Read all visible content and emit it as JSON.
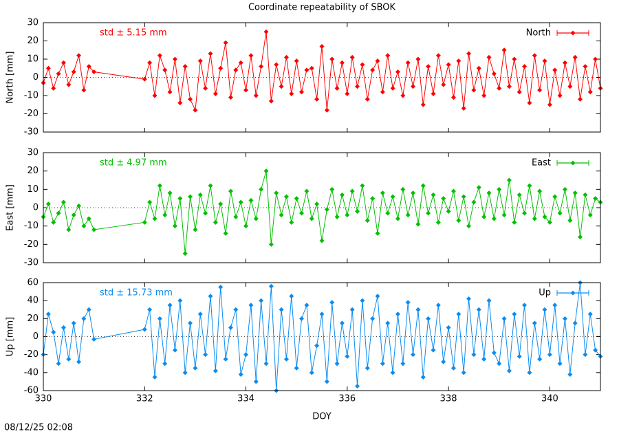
{
  "title": "Coordinate repeatability of SBOK",
  "footer": "08/12/25 02:08",
  "chart_data": [
    {
      "type": "line",
      "y_label": "North [mm]",
      "annotation": "std ± 5.15 mm",
      "legend": "top-right",
      "reference_line": 0,
      "xlim": [
        330,
        341
      ],
      "xticks": [
        330,
        332,
        334,
        336,
        338,
        340
      ],
      "ylim": [
        -30,
        30
      ],
      "yticks": [
        -30,
        -20,
        -10,
        0,
        10,
        20,
        30
      ],
      "x": [
        330,
        330.1,
        330.2,
        330.3,
        330.4,
        330.5,
        330.6,
        330.7,
        330.8,
        330.9,
        331,
        332,
        332.1,
        332.2,
        332.3,
        332.4,
        332.5,
        332.6,
        332.7,
        332.8,
        332.9,
        333,
        333.1,
        333.2,
        333.3,
        333.4,
        333.5,
        333.6,
        333.7,
        333.8,
        333.9,
        334,
        334.1,
        334.2,
        334.3,
        334.4,
        334.5,
        334.6,
        334.7,
        334.8,
        334.9,
        335,
        335.1,
        335.2,
        335.3,
        335.4,
        335.5,
        335.6,
        335.7,
        335.8,
        335.9,
        336,
        336.1,
        336.2,
        336.3,
        336.4,
        336.5,
        336.6,
        336.7,
        336.8,
        336.9,
        337,
        337.1,
        337.2,
        337.3,
        337.4,
        337.5,
        337.6,
        337.7,
        337.8,
        337.9,
        338,
        338.1,
        338.2,
        338.3,
        338.4,
        338.5,
        338.6,
        338.7,
        338.8,
        338.9,
        339,
        339.1,
        339.2,
        339.3,
        339.4,
        339.5,
        339.6,
        339.7,
        339.8,
        339.9,
        340,
        340.1,
        340.2,
        340.3,
        340.4,
        340.5,
        340.6,
        340.7,
        340.8,
        340.9,
        341
      ],
      "series": [
        {
          "name": "North",
          "color": "#ff0000",
          "values": [
            -3,
            5,
            -6,
            2,
            8,
            -4,
            3,
            12,
            -7,
            6,
            3,
            -1,
            8,
            -10,
            12,
            4,
            -8,
            10,
            -14,
            6,
            -12,
            -18,
            9,
            -6,
            13,
            -9,
            5,
            19,
            -11,
            4,
            8,
            -7,
            12,
            -10,
            6,
            25,
            -13,
            7,
            -5,
            11,
            -9,
            9,
            -8,
            4,
            5,
            -12,
            17,
            -18,
            10,
            -6,
            8,
            -9,
            11,
            -5,
            7,
            -12,
            4,
            9,
            -8,
            12,
            -6,
            3,
            -10,
            8,
            -5,
            10,
            -15,
            6,
            -9,
            12,
            -4,
            7,
            -11,
            9,
            -17,
            13,
            -7,
            5,
            -10,
            11,
            2,
            -6,
            15,
            -5,
            10,
            -8,
            6,
            -14,
            12,
            -7,
            9,
            -15,
            4,
            -10,
            8,
            -5,
            11,
            -12,
            6,
            -8,
            10,
            -6
          ]
        }
      ]
    },
    {
      "type": "line",
      "y_label": "East [mm]",
      "annotation": "std ± 4.97 mm",
      "legend": "top-right",
      "reference_line": 0,
      "xlim": [
        330,
        341
      ],
      "xticks": [
        330,
        332,
        334,
        336,
        338,
        340
      ],
      "ylim": [
        -30,
        30
      ],
      "yticks": [
        -30,
        -20,
        -10,
        0,
        10,
        20,
        30
      ],
      "x": [
        330,
        330.1,
        330.2,
        330.3,
        330.4,
        330.5,
        330.6,
        330.7,
        330.8,
        330.9,
        331,
        332,
        332.1,
        332.2,
        332.3,
        332.4,
        332.5,
        332.6,
        332.7,
        332.8,
        332.9,
        333,
        333.1,
        333.2,
        333.3,
        333.4,
        333.5,
        333.6,
        333.7,
        333.8,
        333.9,
        334,
        334.1,
        334.2,
        334.3,
        334.4,
        334.5,
        334.6,
        334.7,
        334.8,
        334.9,
        335,
        335.1,
        335.2,
        335.3,
        335.4,
        335.5,
        335.6,
        335.7,
        335.8,
        335.9,
        336,
        336.1,
        336.2,
        336.3,
        336.4,
        336.5,
        336.6,
        336.7,
        336.8,
        336.9,
        337,
        337.1,
        337.2,
        337.3,
        337.4,
        337.5,
        337.6,
        337.7,
        337.8,
        337.9,
        338,
        338.1,
        338.2,
        338.3,
        338.4,
        338.5,
        338.6,
        338.7,
        338.8,
        338.9,
        339,
        339.1,
        339.2,
        339.3,
        339.4,
        339.5,
        339.6,
        339.7,
        339.8,
        339.9,
        340,
        340.1,
        340.2,
        340.3,
        340.4,
        340.5,
        340.6,
        340.7,
        340.8,
        340.9,
        341
      ],
      "series": [
        {
          "name": "East",
          "color": "#00c000",
          "values": [
            -5,
            2,
            -8,
            -3,
            3,
            -12,
            -4,
            1,
            -10,
            -6,
            -12,
            -8,
            3,
            -6,
            12,
            -4,
            8,
            -10,
            5,
            -25,
            6,
            -12,
            7,
            -3,
            12,
            -8,
            2,
            -14,
            9,
            -5,
            3,
            -10,
            4,
            -6,
            10,
            20,
            -20,
            8,
            -4,
            6,
            -8,
            5,
            -3,
            9,
            -6,
            2,
            -18,
            -1,
            10,
            -5,
            7,
            -4,
            9,
            -2,
            12,
            -7,
            5,
            -14,
            8,
            -3,
            6,
            -6,
            10,
            -4,
            8,
            -9,
            12,
            -3,
            7,
            -8,
            5,
            -2,
            9,
            -7,
            6,
            -10,
            3,
            11,
            -5,
            8,
            -6,
            10,
            -4,
            15,
            -8,
            7,
            -3,
            12,
            -6,
            9,
            -5,
            -8,
            6,
            -3,
            10,
            -7,
            8,
            -16,
            7,
            -4,
            5,
            3
          ]
        }
      ]
    },
    {
      "type": "line",
      "y_label": "Up [mm]",
      "x_label": "DOY",
      "annotation": "std ± 15.73 mm",
      "legend": "top-right",
      "reference_line": 0,
      "xlim": [
        330,
        341
      ],
      "xticks": [
        330,
        332,
        334,
        336,
        338,
        340
      ],
      "ylim": [
        -60,
        60
      ],
      "yticks": [
        -60,
        -40,
        -20,
        0,
        20,
        40,
        60
      ],
      "x": [
        330,
        330.1,
        330.2,
        330.3,
        330.4,
        330.5,
        330.6,
        330.7,
        330.8,
        330.9,
        331,
        332,
        332.1,
        332.2,
        332.3,
        332.4,
        332.5,
        332.6,
        332.7,
        332.8,
        332.9,
        333,
        333.1,
        333.2,
        333.3,
        333.4,
        333.5,
        333.6,
        333.7,
        333.8,
        333.9,
        334,
        334.1,
        334.2,
        334.3,
        334.4,
        334.5,
        334.6,
        334.7,
        334.8,
        334.9,
        335,
        335.1,
        335.2,
        335.3,
        335.4,
        335.5,
        335.6,
        335.7,
        335.8,
        335.9,
        336,
        336.1,
        336.2,
        336.3,
        336.4,
        336.5,
        336.6,
        336.7,
        336.8,
        336.9,
        337,
        337.1,
        337.2,
        337.3,
        337.4,
        337.5,
        337.6,
        337.7,
        337.8,
        337.9,
        338,
        338.1,
        338.2,
        338.3,
        338.4,
        338.5,
        338.6,
        338.7,
        338.8,
        338.9,
        339,
        339.1,
        339.2,
        339.3,
        339.4,
        339.5,
        339.6,
        339.7,
        339.8,
        339.9,
        340,
        340.1,
        340.2,
        340.3,
        340.4,
        340.5,
        340.6,
        340.7,
        340.8,
        340.9,
        341
      ],
      "series": [
        {
          "name": "Up",
          "color": "#0a8cf0",
          "values": [
            -20,
            25,
            5,
            -30,
            10,
            -25,
            15,
            -28,
            20,
            30,
            -3,
            8,
            30,
            -45,
            20,
            -30,
            35,
            -15,
            40,
            -40,
            15,
            -35,
            25,
            -20,
            45,
            -38,
            55,
            -25,
            10,
            30,
            -42,
            -20,
            35,
            -50,
            40,
            -30,
            56,
            -60,
            30,
            -25,
            45,
            -35,
            20,
            35,
            -40,
            -10,
            25,
            -50,
            38,
            -30,
            15,
            -22,
            30,
            -55,
            40,
            -35,
            20,
            45,
            -30,
            15,
            -40,
            25,
            -30,
            38,
            -20,
            30,
            -45,
            20,
            -15,
            35,
            -28,
            10,
            -35,
            25,
            -40,
            42,
            -20,
            30,
            -25,
            40,
            -18,
            -30,
            20,
            -38,
            25,
            -22,
            35,
            -40,
            15,
            -25,
            30,
            -20,
            35,
            -30,
            20,
            -42,
            15,
            60,
            -20,
            25,
            -15,
            -22
          ]
        }
      ]
    }
  ]
}
